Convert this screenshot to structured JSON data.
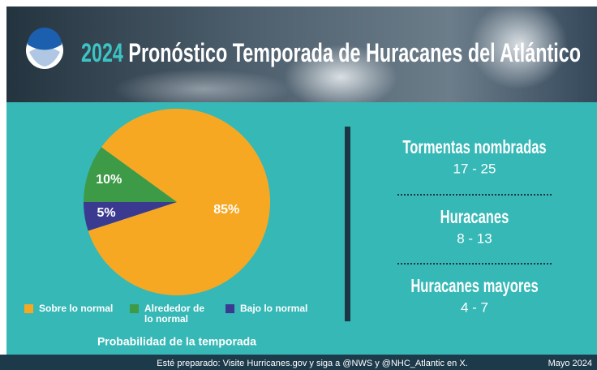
{
  "header": {
    "year": "2024",
    "title": "Pronóstico Temporada de Huracanes del Atlántico"
  },
  "chart_data": {
    "type": "pie",
    "categories": [
      "Sobre lo normal",
      "Alrededor de lo normal",
      "Bajo lo normal"
    ],
    "values": [
      85,
      10,
      5
    ],
    "value_labels": [
      "85%",
      "10%",
      "5%"
    ],
    "colors": [
      "#f7a823",
      "#3d9a47",
      "#3b3a91"
    ],
    "caption": "Probabilidad de la temporada"
  },
  "forecast": [
    {
      "label": "Tormentas nombradas",
      "range": "17 - 25"
    },
    {
      "label": "Huracanes",
      "range": "8 - 13"
    },
    {
      "label": "Huracanes mayores",
      "range": "4 - 7"
    }
  ],
  "footer": {
    "note": "Esté preparado: Visite Hurricanes.gov y siga a @NWS y @NHC_Atlantic en X.",
    "date": "Mayo 2024"
  }
}
